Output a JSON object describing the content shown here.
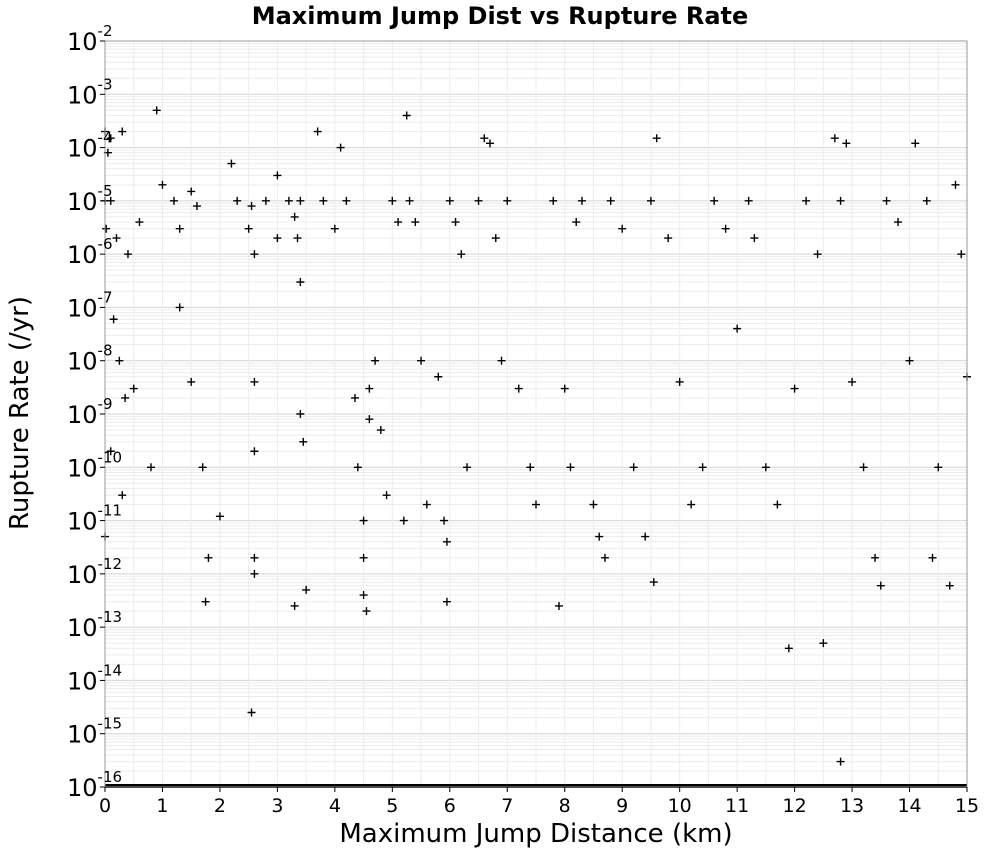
{
  "chart_data": {
    "type": "scatter",
    "title": "Maximum Jump Dist vs Rupture Rate",
    "xlabel": "Maximum Jump Distance (km)",
    "ylabel": "Rupture Rate (/yr)",
    "xlim": [
      0,
      15
    ],
    "ylim": [
      1e-16,
      0.01
    ],
    "yscale": "log",
    "grid": true,
    "marker": "+",
    "marker_color": "#000000",
    "x_ticks": [
      "0",
      "1",
      "2",
      "3",
      "4",
      "5",
      "6",
      "7",
      "8",
      "9",
      "10",
      "11",
      "12",
      "13",
      "14",
      "15"
    ],
    "y_ticks": [
      {
        "base": "10",
        "exp": "-16"
      },
      {
        "base": "10",
        "exp": "-15"
      },
      {
        "base": "10",
        "exp": "-14"
      },
      {
        "base": "10",
        "exp": "-13"
      },
      {
        "base": "10",
        "exp": "-12"
      },
      {
        "base": "10",
        "exp": "-11"
      },
      {
        "base": "10",
        "exp": "-10"
      },
      {
        "base": "10",
        "exp": "-9"
      },
      {
        "base": "10",
        "exp": "-8"
      },
      {
        "base": "10",
        "exp": "-7"
      },
      {
        "base": "10",
        "exp": "-6"
      },
      {
        "base": "10",
        "exp": "-5"
      },
      {
        "base": "10",
        "exp": "-4"
      },
      {
        "base": "10",
        "exp": "-3"
      },
      {
        "base": "10",
        "exp": "-2"
      }
    ],
    "points": [
      [
        0.0,
        0.0002
      ],
      [
        0.0,
        1e-05
      ],
      [
        0.02,
        3e-06
      ],
      [
        0.05,
        8e-05
      ],
      [
        0.1,
        0.00015
      ],
      [
        0.3,
        0.0002
      ],
      [
        0.9,
        0.0005
      ],
      [
        0.1,
        1e-05
      ],
      [
        0.2,
        2e-06
      ],
      [
        0.4,
        1e-06
      ],
      [
        0.6,
        4e-06
      ],
      [
        0.15,
        6e-08
      ],
      [
        0.25,
        1e-08
      ],
      [
        0.35,
        2e-09
      ],
      [
        0.1,
        2e-10
      ],
      [
        0.3,
        3e-11
      ],
      [
        0.0,
        5e-12
      ],
      [
        0.5,
        3e-09
      ],
      [
        0.8,
        1e-10
      ],
      [
        1.0,
        2e-05
      ],
      [
        1.2,
        1e-05
      ],
      [
        1.3,
        3e-06
      ],
      [
        1.5,
        1.5e-05
      ],
      [
        1.6,
        8e-06
      ],
      [
        1.3,
        1e-07
      ],
      [
        1.5,
        4e-09
      ],
      [
        1.7,
        1e-10
      ],
      [
        1.8,
        2e-12
      ],
      [
        1.75,
        3e-13
      ],
      [
        2.0,
        1.2e-11
      ],
      [
        2.2,
        5e-05
      ],
      [
        2.3,
        1e-05
      ],
      [
        2.5,
        3e-06
      ],
      [
        2.55,
        8e-06
      ],
      [
        2.6,
        1e-06
      ],
      [
        2.6,
        2e-12
      ],
      [
        2.6,
        1e-12
      ],
      [
        2.55,
        2.5e-15
      ],
      [
        2.6,
        4e-09
      ],
      [
        2.6,
        2e-10
      ],
      [
        2.8,
        1e-05
      ],
      [
        3.0,
        2e-06
      ],
      [
        3.2,
        1e-05
      ],
      [
        3.3,
        5e-06
      ],
      [
        3.35,
        2e-06
      ],
      [
        3.4,
        1e-05
      ],
      [
        3.4,
        3e-07
      ],
      [
        3.4,
        1e-09
      ],
      [
        3.45,
        3e-10
      ],
      [
        3.3,
        2.5e-13
      ],
      [
        3.5,
        5e-13
      ],
      [
        3.7,
        0.0002
      ],
      [
        3.8,
        1e-05
      ],
      [
        4.0,
        3e-06
      ],
      [
        4.2,
        1e-05
      ],
      [
        4.35,
        2e-09
      ],
      [
        4.4,
        1e-10
      ],
      [
        4.5,
        1e-11
      ],
      [
        4.5,
        2e-12
      ],
      [
        4.5,
        4e-13
      ],
      [
        4.55,
        2e-13
      ],
      [
        4.6,
        3e-09
      ],
      [
        4.6,
        8e-10
      ],
      [
        4.7,
        1e-08
      ],
      [
        4.8,
        5e-10
      ],
      [
        4.9,
        3e-11
      ],
      [
        5.0,
        1e-05
      ],
      [
        5.1,
        4e-06
      ],
      [
        5.2,
        1e-11
      ],
      [
        5.25,
        0.0004
      ],
      [
        5.3,
        1e-05
      ],
      [
        5.4,
        4e-06
      ],
      [
        5.5,
        1e-08
      ],
      [
        5.6,
        2e-11
      ],
      [
        5.8,
        5e-09
      ],
      [
        5.9,
        1e-11
      ],
      [
        5.95,
        4e-12
      ],
      [
        5.95,
        3e-13
      ],
      [
        6.0,
        1e-05
      ],
      [
        6.1,
        4e-06
      ],
      [
        6.3,
        1e-10
      ],
      [
        6.5,
        1e-05
      ],
      [
        6.6,
        0.00015
      ],
      [
        6.7,
        0.00012
      ],
      [
        6.8,
        2e-06
      ],
      [
        6.9,
        1e-08
      ],
      [
        7.0,
        1e-05
      ],
      [
        7.2,
        3e-09
      ],
      [
        7.4,
        1e-10
      ],
      [
        7.5,
        2e-11
      ],
      [
        7.8,
        1e-05
      ],
      [
        7.9,
        2.5e-13
      ],
      [
        8.0,
        3e-09
      ],
      [
        8.1,
        1e-10
      ],
      [
        8.2,
        4e-06
      ],
      [
        8.3,
        1e-05
      ],
      [
        8.5,
        2e-11
      ],
      [
        8.6,
        5e-12
      ],
      [
        8.7,
        2e-12
      ],
      [
        8.8,
        1e-05
      ],
      [
        9.0,
        3e-06
      ],
      [
        9.2,
        1e-10
      ],
      [
        9.4,
        5e-12
      ],
      [
        9.5,
        1e-05
      ],
      [
        9.55,
        7e-13
      ],
      [
        9.6,
        0.00015
      ],
      [
        9.8,
        2e-06
      ],
      [
        10.0,
        4e-09
      ],
      [
        10.2,
        2e-11
      ],
      [
        10.4,
        1e-10
      ],
      [
        10.6,
        1e-05
      ],
      [
        10.8,
        3e-06
      ],
      [
        11.0,
        4e-08
      ],
      [
        11.2,
        1e-05
      ],
      [
        11.3,
        2e-06
      ],
      [
        11.5,
        1e-10
      ],
      [
        11.7,
        2e-11
      ],
      [
        11.9,
        4e-14
      ],
      [
        12.0,
        3e-09
      ],
      [
        12.2,
        1e-05
      ],
      [
        12.4,
        1e-06
      ],
      [
        12.5,
        5e-14
      ],
      [
        12.7,
        0.00015
      ],
      [
        12.8,
        1e-05
      ],
      [
        12.8,
        3e-16
      ],
      [
        12.9,
        0.00012
      ],
      [
        13.0,
        4e-09
      ],
      [
        13.2,
        1e-10
      ],
      [
        13.4,
        2e-12
      ],
      [
        13.5,
        6e-13
      ],
      [
        13.6,
        1e-05
      ],
      [
        13.8,
        4e-06
      ],
      [
        14.0,
        1e-08
      ],
      [
        14.1,
        0.00012
      ],
      [
        14.3,
        1e-05
      ],
      [
        14.4,
        2e-12
      ],
      [
        14.5,
        1e-10
      ],
      [
        14.7,
        6e-13
      ],
      [
        14.8,
        2e-05
      ],
      [
        14.9,
        1e-06
      ],
      [
        15.0,
        5e-09
      ],
      [
        3.0,
        3e-05
      ],
      [
        4.1,
        0.0001
      ],
      [
        6.2,
        1e-06
      ]
    ]
  }
}
